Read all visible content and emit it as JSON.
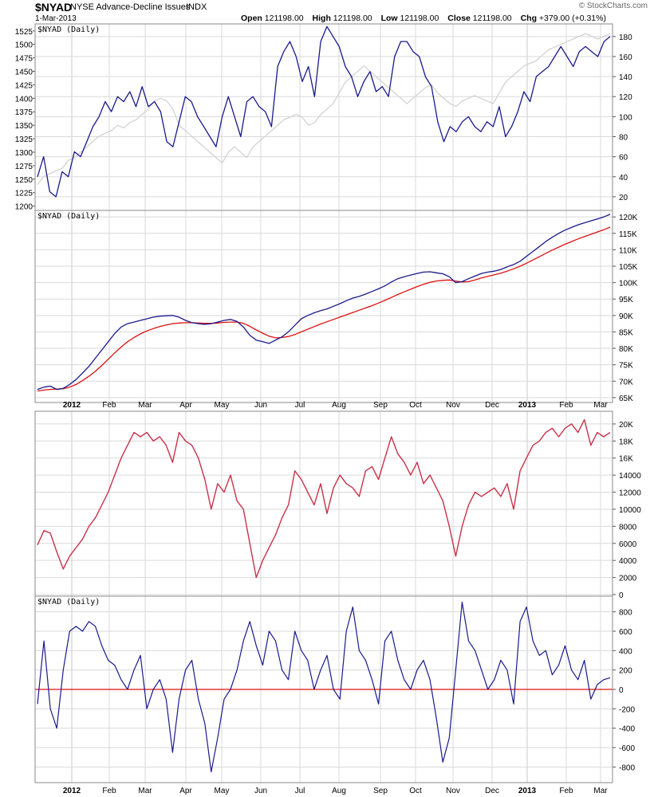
{
  "header": {
    "symbol": "$NYAD",
    "name": "NYSE Advance-Decline Issues",
    "exchange": "INDX",
    "date": "1-Mar-2013",
    "logo": "© StockCharts.com",
    "open_label": "Open",
    "open": "121198.00",
    "high_label": "High",
    "high": "121198.00",
    "low_label": "Low",
    "low": "121198.00",
    "close_label": "Close",
    "close": "121198.00",
    "chg_label": "Chg",
    "chg": "+379.00 (+0.31%)"
  },
  "colors": {
    "navy": "#1a1a8c",
    "red": "#dd1111",
    "crimson": "#c8324a",
    "gray": "#d3d3d3",
    "grid": "#d9d9d9"
  },
  "chart_data": [
    {
      "type": "line",
      "panel_label": "$NYAD (Daily)",
      "left_axis_ticks": [
        1200,
        1225,
        1250,
        1275,
        1300,
        1325,
        1350,
        1375,
        1400,
        1425,
        1450,
        1475,
        1500,
        1525
      ],
      "right_axis_ticks": [
        20,
        40,
        60,
        80,
        100,
        120,
        140,
        160,
        180
      ],
      "ylim_left": [
        1195,
        1535
      ],
      "ylim_right": [
        8,
        191
      ],
      "series": [
        {
          "color": "#1a1a8c",
          "axis": "right",
          "values": [
            40,
            60,
            25,
            20,
            45,
            40,
            65,
            60,
            75,
            90,
            100,
            115,
            105,
            120,
            115,
            125,
            110,
            130,
            110,
            115,
            105,
            75,
            70,
            95,
            120,
            115,
            100,
            90,
            80,
            70,
            100,
            120,
            100,
            80,
            115,
            120,
            110,
            105,
            90,
            150,
            165,
            175,
            160,
            135,
            150,
            120,
            175,
            190,
            180,
            170,
            150,
            140,
            120,
            135,
            145,
            125,
            130,
            120,
            160,
            175,
            175,
            165,
            160,
            140,
            130,
            95,
            75,
            90,
            85,
            95,
            100,
            90,
            85,
            95,
            90,
            110,
            80,
            90,
            105,
            125,
            115,
            140,
            145,
            150,
            160,
            170,
            160,
            150,
            165,
            170,
            165,
            160,
            175,
            180
          ]
        },
        {
          "color": "#d3d3d3",
          "axis": "left",
          "values": [
            1240,
            1255,
            1260,
            1265,
            1270,
            1285,
            1290,
            1300,
            1310,
            1320,
            1330,
            1335,
            1340,
            1350,
            1345,
            1355,
            1360,
            1370,
            1380,
            1395,
            1400,
            1395,
            1380,
            1350,
            1340,
            1330,
            1320,
            1310,
            1300,
            1290,
            1280,
            1300,
            1310,
            1300,
            1290,
            1310,
            1320,
            1330,
            1340,
            1350,
            1360,
            1365,
            1370,
            1365,
            1350,
            1355,
            1370,
            1380,
            1390,
            1410,
            1430,
            1440,
            1450,
            1460,
            1450,
            1440,
            1430,
            1420,
            1410,
            1400,
            1390,
            1400,
            1410,
            1420,
            1425,
            1410,
            1400,
            1390,
            1385,
            1395,
            1400,
            1405,
            1400,
            1395,
            1390,
            1410,
            1430,
            1440,
            1450,
            1460,
            1465,
            1470,
            1480,
            1490,
            1495,
            1500,
            1505,
            1510,
            1515,
            1520,
            1515,
            1510,
            1515,
            1520
          ]
        }
      ]
    },
    {
      "type": "line",
      "panel_label": "$NYAD (Daily)",
      "right_axis_ticks": [
        "65K",
        "70K",
        "75K",
        "80K",
        "85K",
        "90K",
        "95K",
        "100K",
        "105K",
        "110K",
        "115K",
        "120K"
      ],
      "ylim": [
        64000,
        121500
      ],
      "x_tick_labels": [
        "2012",
        "Feb",
        "Mar",
        "Apr",
        "May",
        "Jun",
        "Jul",
        "Aug",
        "Sep",
        "Oct",
        "Nov",
        "Dec",
        "2013",
        "Feb",
        "Mar"
      ],
      "series": [
        {
          "color": "#1a1a8c",
          "values": [
            67500,
            68200,
            68500,
            67500,
            67800,
            69000,
            70500,
            72500,
            74500,
            77000,
            79500,
            82000,
            84500,
            86500,
            87500,
            88000,
            88500,
            89000,
            89500,
            89800,
            89900,
            90000,
            89500,
            88500,
            87800,
            87500,
            87300,
            87500,
            88000,
            88500,
            88800,
            88200,
            86500,
            84000,
            82500,
            82000,
            81500,
            82500,
            83500,
            85000,
            87000,
            89000,
            90000,
            90800,
            91500,
            92000,
            92800,
            93600,
            94500,
            95300,
            95800,
            96500,
            97300,
            98100,
            99000,
            100200,
            101200,
            101800,
            102300,
            102800,
            103200,
            103300,
            103000,
            102700,
            101800,
            100000,
            100300,
            101200,
            102000,
            102800,
            103200,
            103500,
            104000,
            104800,
            105500,
            106500,
            108000,
            109500,
            111000,
            112500,
            113800,
            115000,
            116000,
            116800,
            117600,
            118200,
            118800,
            119400,
            120000,
            120800
          ]
        },
        {
          "color": "#dd1111",
          "values": [
            67000,
            67300,
            67500,
            67600,
            67700,
            68200,
            69000,
            70200,
            71500,
            73000,
            74800,
            76700,
            78600,
            80400,
            82000,
            83300,
            84400,
            85300,
            86000,
            86600,
            87100,
            87500,
            87700,
            87800,
            87800,
            87700,
            87600,
            87600,
            87700,
            87900,
            88000,
            88000,
            87600,
            86700,
            85600,
            84600,
            83700,
            83200,
            83300,
            83600,
            84200,
            85000,
            85800,
            86600,
            87400,
            88100,
            88800,
            89500,
            90200,
            90900,
            91600,
            92300,
            93000,
            93800,
            94600,
            95500,
            96400,
            97200,
            98000,
            98800,
            99500,
            100100,
            100500,
            100700,
            100800,
            100500,
            100200,
            100300,
            100800,
            101400,
            101900,
            102400,
            102900,
            103500,
            104200,
            105000,
            105900,
            106900,
            107900,
            108900,
            109900,
            110800,
            111700,
            112500,
            113300,
            114000,
            114700,
            115400,
            116100,
            116900
          ]
        }
      ]
    },
    {
      "type": "line",
      "right_axis_ticks": [
        "0",
        "2000",
        "4000",
        "6000",
        "8000",
        "10000",
        "12000",
        "14000",
        "16K",
        "18K",
        "20K"
      ],
      "ylim": [
        0,
        21300
      ],
      "series": [
        {
          "color": "#c8324a",
          "values": [
            5800,
            7500,
            7200,
            5000,
            3000,
            4500,
            5500,
            6500,
            8000,
            9000,
            10500,
            12000,
            14000,
            16000,
            17500,
            19000,
            18500,
            19000,
            18000,
            18500,
            17500,
            15500,
            19000,
            18000,
            17500,
            16000,
            13500,
            10000,
            13000,
            12000,
            14000,
            11000,
            10000,
            6000,
            2000,
            4000,
            5500,
            7000,
            9000,
            10500,
            14500,
            13500,
            12000,
            10500,
            13000,
            9500,
            12500,
            14000,
            13000,
            12500,
            11500,
            14500,
            15000,
            13500,
            16000,
            18500,
            16500,
            15500,
            14000,
            15500,
            13000,
            14000,
            12500,
            11000,
            8000,
            4500,
            8000,
            10500,
            12000,
            11500,
            12000,
            12500,
            11500,
            13000,
            10000,
            14500,
            16000,
            17500,
            18000,
            19000,
            19500,
            18500,
            19500,
            20000,
            19000,
            20500,
            17500,
            19000,
            18500,
            19000
          ]
        }
      ]
    },
    {
      "type": "line",
      "panel_label": "$NYAD (Daily)",
      "right_axis_ticks": [
        -800,
        -600,
        -400,
        -200,
        0,
        200,
        400,
        600,
        800
      ],
      "ylim": [
        -945,
        945
      ],
      "x_tick_labels": [
        "2012",
        "Feb",
        "Mar",
        "Apr",
        "May",
        "Jun",
        "Jul",
        "Aug",
        "Sep",
        "Oct",
        "Nov",
        "Dec",
        "2013",
        "Feb",
        "Mar"
      ],
      "series": [
        {
          "color": "#1a1a8c",
          "values": [
            -150,
            500,
            -200,
            -400,
            200,
            600,
            650,
            600,
            700,
            650,
            450,
            300,
            250,
            100,
            0,
            200,
            350,
            -200,
            0,
            100,
            -100,
            -650,
            -100,
            200,
            300,
            -100,
            -350,
            -850,
            -500,
            -100,
            0,
            200,
            500,
            700,
            450,
            250,
            600,
            500,
            200,
            100,
            600,
            400,
            300,
            0,
            200,
            350,
            0,
            -100,
            600,
            850,
            400,
            300,
            100,
            -150,
            500,
            600,
            300,
            100,
            0,
            200,
            300,
            100,
            -300,
            -750,
            -500,
            200,
            900,
            500,
            400,
            200,
            0,
            100,
            300,
            200,
            -150,
            700,
            850,
            500,
            350,
            400,
            150,
            250,
            450,
            200,
            100,
            300,
            -100,
            50,
            100,
            120
          ]
        }
      ],
      "reference_line": {
        "y": 0,
        "color": "#dd1111"
      }
    }
  ]
}
